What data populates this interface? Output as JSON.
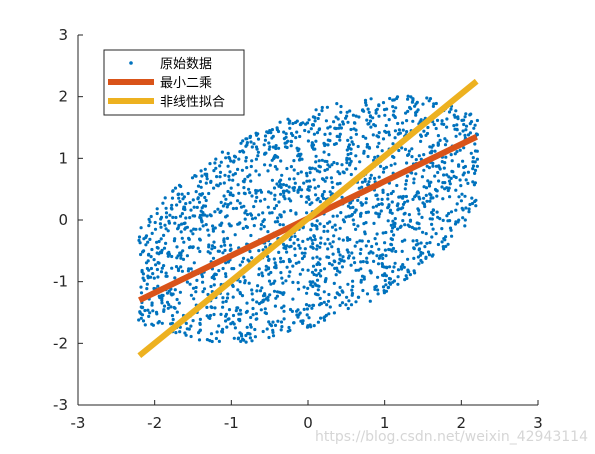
{
  "chart_data": {
    "type": "scatter",
    "xlim": [
      -3,
      3
    ],
    "ylim": [
      -3,
      3
    ],
    "xticks": [
      "-3",
      "-2",
      "-1",
      "0",
      "1",
      "2",
      "3"
    ],
    "yticks": [
      "-3",
      "-2",
      "-1",
      "0",
      "1",
      "2",
      "3"
    ],
    "grid": false,
    "legend_position": "top-left",
    "series": [
      {
        "name": "原始数据",
        "kind": "scatter",
        "color": "#0072BD",
        "distribution": {
          "shape": "tilted ellipse",
          "center": [
            0,
            0
          ],
          "x_range": [
            -2.2,
            2.2
          ],
          "y_range": [
            -2.2,
            2.2
          ],
          "approx_points": 2000
        }
      },
      {
        "name": "最小二乘",
        "kind": "line",
        "color": "#D95319",
        "x": [
          -2.2,
          2.2
        ],
        "y": [
          -1.3,
          1.35
        ]
      },
      {
        "name": "非线性拟合",
        "kind": "line",
        "color": "#EDB120",
        "x": [
          -2.2,
          2.2
        ],
        "y": [
          -2.2,
          2.25
        ]
      }
    ]
  },
  "watermark": "https://blog.csdn.net/weixin_42943114"
}
